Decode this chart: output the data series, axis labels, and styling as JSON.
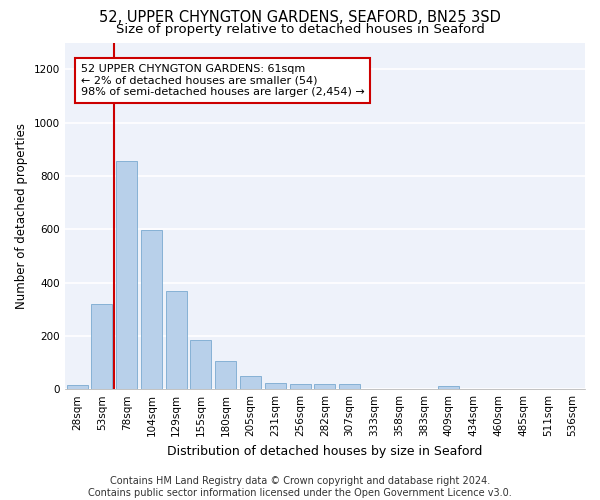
{
  "title1": "52, UPPER CHYNGTON GARDENS, SEAFORD, BN25 3SD",
  "title2": "Size of property relative to detached houses in Seaford",
  "xlabel": "Distribution of detached houses by size in Seaford",
  "ylabel": "Number of detached properties",
  "footer1": "Contains HM Land Registry data © Crown copyright and database right 2024.",
  "footer2": "Contains public sector information licensed under the Open Government Licence v3.0.",
  "bar_labels": [
    "28sqm",
    "53sqm",
    "78sqm",
    "104sqm",
    "129sqm",
    "155sqm",
    "180sqm",
    "205sqm",
    "231sqm",
    "256sqm",
    "282sqm",
    "307sqm",
    "333sqm",
    "358sqm",
    "383sqm",
    "409sqm",
    "434sqm",
    "460sqm",
    "485sqm",
    "511sqm",
    "536sqm"
  ],
  "bar_values": [
    15,
    320,
    855,
    598,
    370,
    185,
    105,
    48,
    22,
    18,
    18,
    20,
    0,
    0,
    0,
    12,
    0,
    0,
    0,
    0,
    0
  ],
  "bar_color": "#b8d0ea",
  "bar_edge_color": "#7aaad0",
  "highlight_bar_index": 1,
  "highlight_color": "#cc0000",
  "annotation_line1": "52 UPPER CHYNGTON GARDENS: 61sqm",
  "annotation_line2": "← 2% of detached houses are smaller (54)",
  "annotation_line3": "98% of semi-detached houses are larger (2,454) →",
  "annotation_box_color": "#cc0000",
  "ylim": [
    0,
    1300
  ],
  "yticks": [
    0,
    200,
    400,
    600,
    800,
    1000,
    1200
  ],
  "background_color": "#eef2fa",
  "grid_color": "#ffffff",
  "title1_fontsize": 10.5,
  "title2_fontsize": 9.5,
  "xlabel_fontsize": 9,
  "ylabel_fontsize": 8.5,
  "tick_fontsize": 7.5,
  "annotation_fontsize": 8,
  "footer_fontsize": 7
}
